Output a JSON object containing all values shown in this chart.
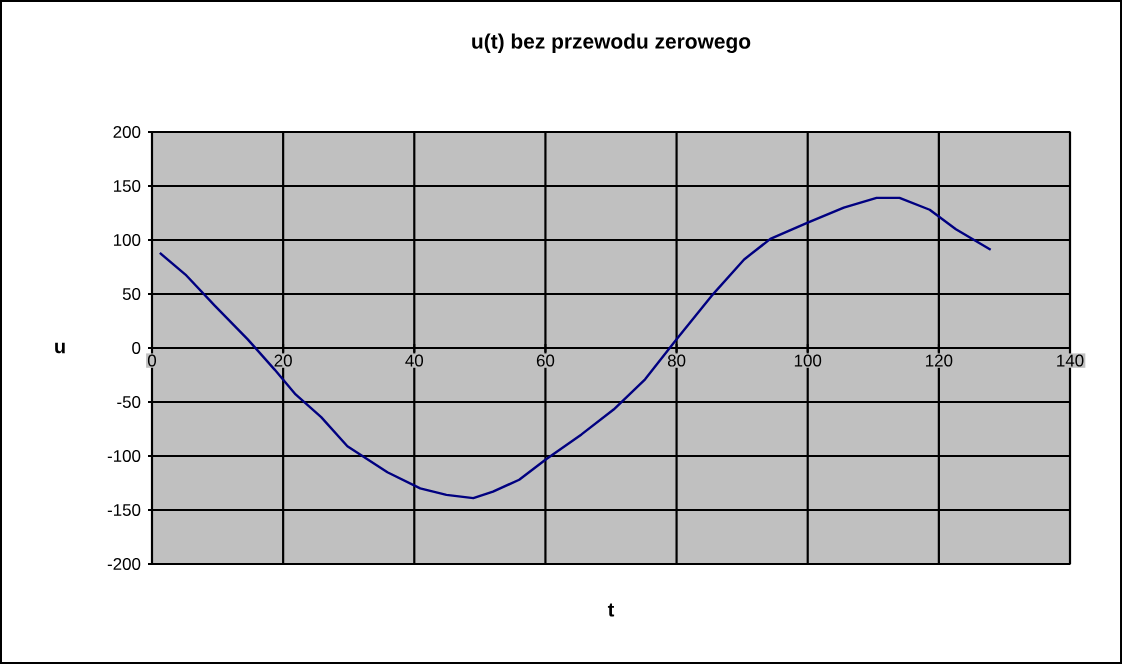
{
  "chart_data": {
    "type": "line",
    "title": "u(t) bez przewodu zerowego",
    "xlabel": "t",
    "ylabel": "u",
    "xlim": [
      0,
      140
    ],
    "xticks": [
      0,
      20,
      40,
      60,
      80,
      100,
      120,
      140
    ],
    "ylim": [
      -200,
      200
    ],
    "yticks": [
      -200,
      -150,
      -100,
      -50,
      0,
      50,
      100,
      150,
      200
    ],
    "grid": true,
    "series": [
      {
        "color": "#000080",
        "x": [
          1.2,
          5.1,
          9.6,
          14.6,
          18.7,
          21.9,
          25.8,
          29.8,
          35.9,
          40.9,
          44.9,
          49,
          52,
          56,
          60.1,
          65.5,
          70.4,
          75.2,
          80,
          85.3,
          90.3,
          94.3,
          100,
          105.5,
          110.5,
          114,
          118.6,
          122.6,
          127.9
        ],
        "values": [
          88,
          68,
          39,
          8,
          -20,
          -43,
          -64,
          -91,
          -115,
          -130,
          -136,
          -139,
          -133,
          -122,
          -103,
          -80,
          -57,
          -29,
          8,
          48,
          82,
          101,
          116,
          130,
          139,
          139,
          128,
          110,
          91
        ]
      }
    ]
  }
}
